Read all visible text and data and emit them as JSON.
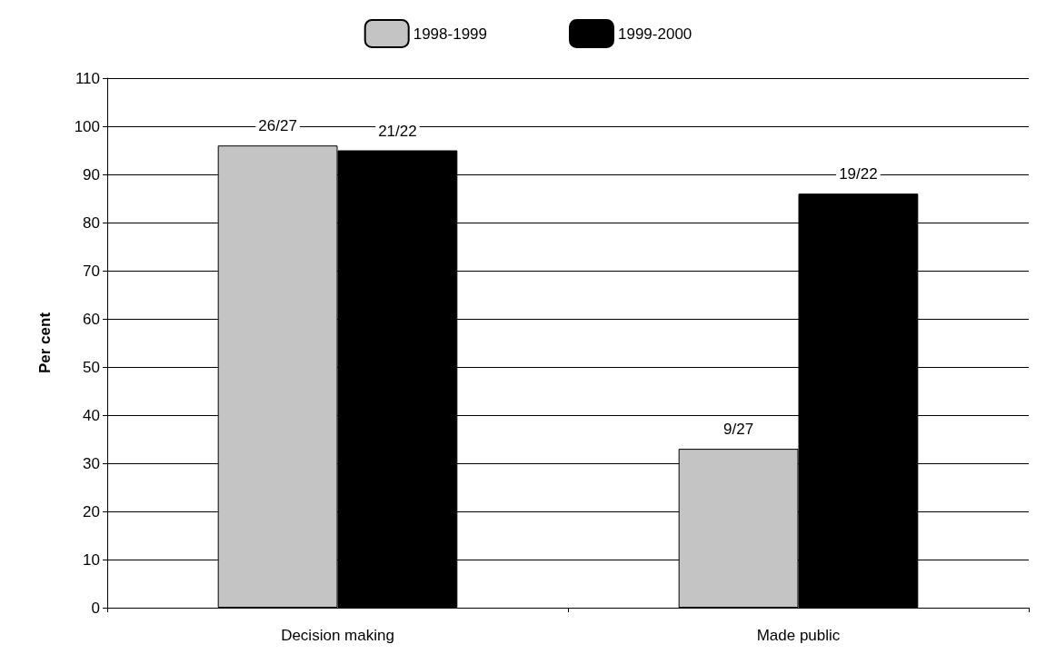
{
  "chart_data": {
    "type": "bar",
    "ylabel": "Per cent",
    "categories": [
      "Decision making",
      "Made public"
    ],
    "series": [
      {
        "name": "1998-1999",
        "color": "#c4c4c4",
        "values": [
          96,
          33
        ],
        "value_labels": [
          "26/27",
          "9/27"
        ]
      },
      {
        "name": "1999-2000",
        "color": "#000000",
        "values": [
          95,
          86
        ],
        "value_labels": [
          "21/22",
          "19/22"
        ]
      }
    ],
    "ylim": [
      0,
      110
    ],
    "yticks": [
      0,
      10,
      20,
      30,
      40,
      50,
      60,
      70,
      80,
      90,
      100,
      110
    ],
    "grid": "y",
    "legend": "top"
  }
}
